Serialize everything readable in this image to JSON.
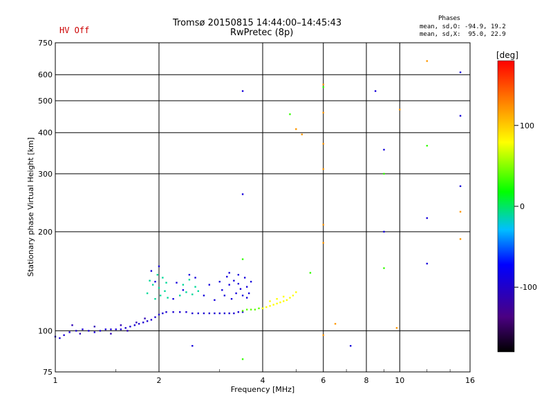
{
  "header": {
    "status": "HV Off",
    "title_line1": "Tromsø 20150815 14:44:00–14:45:43",
    "title_line2": "RwPretec (8p)",
    "phases_title": "Phases",
    "phases_line1": "mean, sd,O: -94.9, 19.2",
    "phases_line2": "mean, sd,X:  95.0, 22.9"
  },
  "colors": {
    "status": "#cc0000",
    "grid": "#000000"
  },
  "chart_data": {
    "type": "scatter",
    "title": "Tromsø 20150815 14:44:00–14:45:43",
    "subtitle": "RwPretec (8p)",
    "xlabel": "Frequency [MHz]",
    "ylabel": "Stationary phase Virtual Height [km]",
    "xscale": "log",
    "yscale": "log",
    "xlim": [
      1,
      16
    ],
    "ylim": [
      75,
      750
    ],
    "xticks": [
      1,
      2,
      4,
      6,
      8,
      10,
      16
    ],
    "yticks": [
      75,
      100,
      200,
      300,
      400,
      500,
      600,
      750
    ],
    "colorbar": {
      "label": "[deg]",
      "range": [
        -180,
        180
      ],
      "ticks": [
        100,
        0,
        -100
      ]
    },
    "series": [
      {
        "name": "O trace lower",
        "phase": -95,
        "points": [
          [
            1.0,
            96
          ],
          [
            1.03,
            95
          ],
          [
            1.06,
            97
          ],
          [
            1.1,
            99
          ],
          [
            1.15,
            100
          ],
          [
            1.2,
            101
          ],
          [
            1.25,
            100
          ],
          [
            1.3,
            99
          ],
          [
            1.35,
            100
          ],
          [
            1.4,
            101
          ],
          [
            1.45,
            101
          ],
          [
            1.5,
            101
          ],
          [
            1.55,
            101
          ],
          [
            1.6,
            102
          ],
          [
            1.65,
            103
          ],
          [
            1.7,
            104
          ],
          [
            1.75,
            105
          ],
          [
            1.8,
            106
          ],
          [
            1.85,
            107
          ],
          [
            1.9,
            108
          ],
          [
            1.95,
            110
          ],
          [
            2.0,
            112
          ],
          [
            2.05,
            113
          ],
          [
            2.1,
            114
          ],
          [
            2.2,
            114
          ],
          [
            2.3,
            114
          ],
          [
            2.4,
            114
          ],
          [
            2.5,
            113
          ],
          [
            2.6,
            113
          ],
          [
            2.7,
            113
          ],
          [
            2.8,
            113
          ],
          [
            2.9,
            113
          ],
          [
            3.0,
            113
          ],
          [
            3.1,
            113
          ],
          [
            3.2,
            113
          ],
          [
            3.3,
            113
          ],
          [
            3.4,
            114
          ],
          [
            3.5,
            114
          ]
        ]
      },
      {
        "name": "O trace spread",
        "phase": -110,
        "points": [
          [
            1.12,
            104
          ],
          [
            1.18,
            98
          ],
          [
            1.3,
            103
          ],
          [
            1.45,
            98
          ],
          [
            1.55,
            104
          ],
          [
            1.62,
            100
          ],
          [
            1.72,
            106
          ],
          [
            1.82,
            109
          ]
        ]
      },
      {
        "name": "X echoes 2 MHz",
        "phase": -10,
        "points": [
          [
            1.85,
            130
          ],
          [
            1.88,
            142
          ],
          [
            1.92,
            138
          ],
          [
            1.95,
            125
          ],
          [
            1.98,
            148
          ],
          [
            2.0,
            135
          ],
          [
            2.02,
            128
          ],
          [
            2.05,
            145
          ],
          [
            2.08,
            132
          ],
          [
            2.1,
            140
          ],
          [
            2.12,
            126
          ],
          [
            2.3,
            128
          ],
          [
            2.35,
            138
          ],
          [
            2.4,
            131
          ],
          [
            2.45,
            143
          ],
          [
            2.5,
            129
          ],
          [
            2.55,
            136
          ],
          [
            2.6,
            132
          ]
        ]
      },
      {
        "name": "spread 2-3.5 MHz",
        "phase": -90,
        "points": [
          [
            1.9,
            152
          ],
          [
            1.95,
            141
          ],
          [
            2.0,
            157
          ],
          [
            2.2,
            125
          ],
          [
            2.25,
            140
          ],
          [
            2.35,
            133
          ],
          [
            2.45,
            148
          ],
          [
            2.55,
            145
          ],
          [
            2.7,
            128
          ],
          [
            2.8,
            138
          ],
          [
            2.9,
            124
          ],
          [
            3.0,
            141
          ],
          [
            3.05,
            133
          ],
          [
            3.1,
            128
          ],
          [
            3.15,
            146
          ],
          [
            3.2,
            138
          ],
          [
            3.25,
            125
          ],
          [
            3.3,
            142
          ],
          [
            3.35,
            130
          ],
          [
            3.4,
            139
          ],
          [
            3.45,
            134
          ],
          [
            3.5,
            128
          ],
          [
            3.55,
            145
          ],
          [
            3.6,
            136
          ],
          [
            3.65,
            130
          ],
          [
            3.7,
            141
          ],
          [
            3.2,
            150
          ],
          [
            3.4,
            148
          ],
          [
            3.6,
            126
          ]
        ]
      },
      {
        "name": "ridge 3.5-4 MHz",
        "phase": 40,
        "points": [
          [
            3.5,
            115
          ],
          [
            3.6,
            116
          ],
          [
            3.7,
            116
          ],
          [
            3.8,
            116
          ],
          [
            3.9,
            117
          ],
          [
            4.0,
            117
          ]
        ]
      },
      {
        "name": "F2 trace",
        "phase": 80,
        "points": [
          [
            4.0,
            117
          ],
          [
            4.1,
            118
          ],
          [
            4.2,
            119
          ],
          [
            4.3,
            120
          ],
          [
            4.4,
            121
          ],
          [
            4.5,
            122
          ],
          [
            4.6,
            123
          ],
          [
            4.7,
            124
          ],
          [
            4.8,
            126
          ],
          [
            4.9,
            128
          ],
          [
            5.0,
            131
          ],
          [
            4.2,
            123
          ],
          [
            4.4,
            125
          ],
          [
            4.6,
            127
          ]
        ]
      },
      {
        "name": "sparse",
        "phase": -90,
        "points": [
          [
            3.5,
            535
          ],
          [
            3.5,
            260
          ],
          [
            8.5,
            535
          ],
          [
            9.0,
            355
          ],
          [
            9.0,
            200
          ],
          [
            12.0,
            220
          ],
          [
            12.0,
            160
          ],
          [
            15.0,
            610
          ],
          [
            15.0,
            450
          ],
          [
            7.2,
            90
          ],
          [
            2.5,
            90
          ],
          [
            15.0,
            275
          ]
        ]
      },
      {
        "name": "sparse warm",
        "phase": 120,
        "points": [
          [
            6.0,
            560
          ],
          [
            6.0,
            460
          ],
          [
            6.0,
            370
          ],
          [
            6.0,
            310
          ],
          [
            6.0,
            210
          ],
          [
            6.0,
            185
          ],
          [
            6.0,
            97
          ],
          [
            5.0,
            410
          ],
          [
            5.2,
            395
          ],
          [
            10.0,
            470
          ],
          [
            12.0,
            660
          ],
          [
            15.0,
            190
          ],
          [
            15.0,
            230
          ],
          [
            6.5,
            105
          ],
          [
            9.8,
            102
          ]
        ]
      },
      {
        "name": "sparse green-cyan",
        "phase": 30,
        "points": [
          [
            3.5,
            82
          ],
          [
            6.0,
            550
          ],
          [
            12.0,
            365
          ],
          [
            9.0,
            300
          ],
          [
            9.0,
            155
          ],
          [
            3.5,
            165
          ],
          [
            4.8,
            455
          ],
          [
            5.5,
            150
          ]
        ]
      }
    ]
  }
}
